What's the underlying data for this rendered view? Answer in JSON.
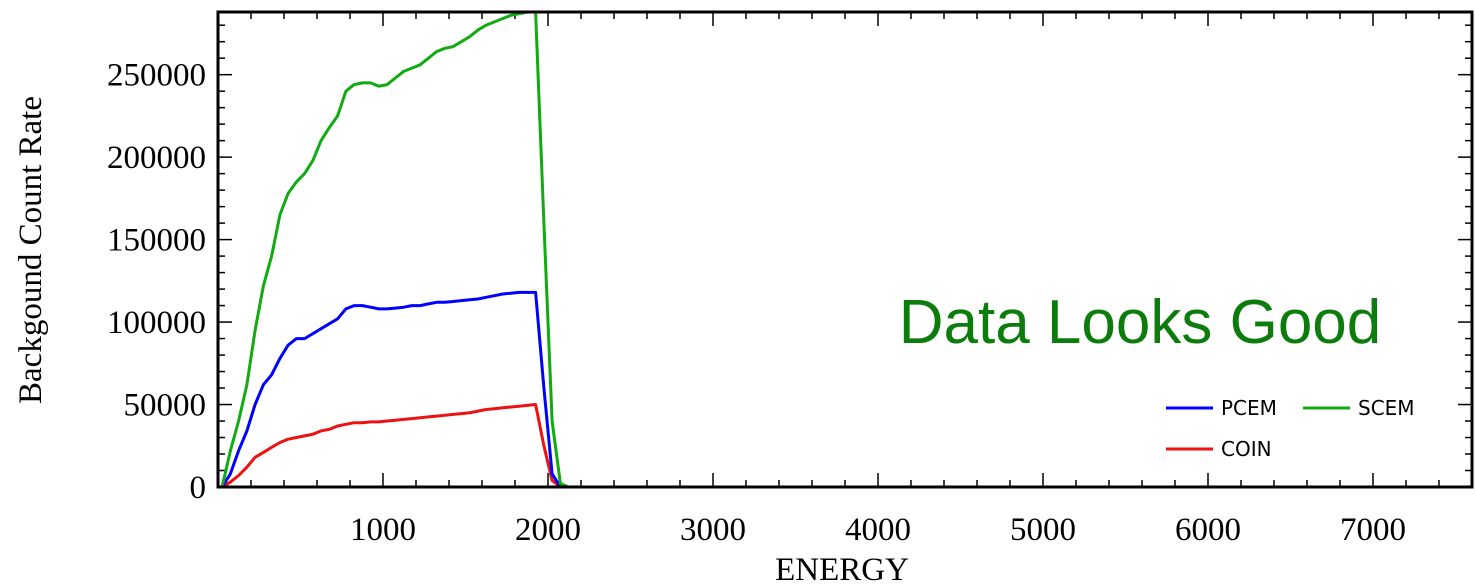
{
  "chart_data": {
    "type": "line",
    "title": "",
    "xlabel": "ENERGY",
    "ylabel": "Backgound Count Rate",
    "xlim": [
      0,
      7600
    ],
    "ylim": [
      0,
      288000
    ],
    "x_ticks": [
      1000,
      2000,
      3000,
      4000,
      5000,
      6000,
      7000
    ],
    "x_tick_labels": [
      "1000",
      "2000",
      "3000",
      "4000",
      "5000",
      "6000",
      "7000"
    ],
    "y_ticks": [
      0,
      50000,
      100000,
      150000,
      200000,
      250000
    ],
    "y_tick_labels": [
      "0",
      "50000",
      "100000",
      "150000",
      "200000",
      "250000"
    ],
    "grid": false,
    "legend_position": "bottom-right",
    "annotation": {
      "text": "Data Looks Good",
      "color": "#0c7d0c"
    },
    "series": [
      {
        "name": "PCEM",
        "color": "#0000ff",
        "x": [
          25,
          75,
          125,
          175,
          225,
          275,
          325,
          375,
          425,
          475,
          525,
          575,
          625,
          675,
          725,
          775,
          825,
          875,
          925,
          975,
          1025,
          1075,
          1125,
          1175,
          1225,
          1275,
          1325,
          1375,
          1425,
          1475,
          1525,
          1575,
          1625,
          1675,
          1725,
          1775,
          1825,
          1875,
          1925,
          1975,
          2025,
          2075,
          2125,
          2200,
          3000,
          4000,
          5000,
          6000,
          7000,
          7600
        ],
        "y": [
          0,
          8000,
          22000,
          34000,
          50000,
          62000,
          68000,
          78000,
          86000,
          90000,
          90000,
          93000,
          96000,
          99000,
          102000,
          108000,
          110000,
          110000,
          109000,
          108000,
          108000,
          108500,
          109000,
          110000,
          110000,
          111000,
          112000,
          112000,
          112500,
          113000,
          113500,
          114000,
          115000,
          116000,
          117000,
          117500,
          118000,
          118000,
          118000,
          60000,
          8000,
          0,
          0,
          0,
          0,
          0,
          0,
          0,
          0,
          0
        ]
      },
      {
        "name": "SCEM",
        "color": "#11aa11",
        "x": [
          25,
          75,
          125,
          175,
          225,
          275,
          325,
          375,
          425,
          475,
          525,
          575,
          625,
          675,
          725,
          775,
          825,
          875,
          925,
          975,
          1025,
          1075,
          1125,
          1175,
          1225,
          1275,
          1325,
          1375,
          1425,
          1475,
          1525,
          1575,
          1625,
          1675,
          1725,
          1775,
          1825,
          1875,
          1925,
          1975,
          2025,
          2075,
          2125,
          2200,
          3000,
          4000,
          5000,
          6000,
          7000,
          7600
        ],
        "y": [
          0,
          22000,
          40000,
          62000,
          95000,
          122000,
          140000,
          165000,
          178000,
          185000,
          190000,
          198000,
          210000,
          218000,
          225000,
          240000,
          244000,
          245000,
          245000,
          243000,
          244000,
          248000,
          252000,
          254000,
          256000,
          260000,
          264000,
          266000,
          267000,
          270000,
          273000,
          277000,
          280000,
          282000,
          284000,
          286000,
          287000,
          288000,
          288000,
          160000,
          40000,
          2000,
          0,
          0,
          0,
          0,
          0,
          0,
          0,
          0
        ]
      },
      {
        "name": "COIN",
        "color": "#ee1111",
        "x": [
          25,
          75,
          125,
          175,
          225,
          275,
          325,
          375,
          425,
          475,
          525,
          575,
          625,
          675,
          725,
          775,
          825,
          875,
          925,
          975,
          1025,
          1075,
          1125,
          1175,
          1225,
          1275,
          1325,
          1375,
          1425,
          1475,
          1525,
          1575,
          1625,
          1675,
          1725,
          1775,
          1825,
          1875,
          1925,
          1975,
          2025,
          2075,
          2125,
          2200,
          3000,
          4000,
          5000,
          6000,
          7000,
          7600
        ],
        "y": [
          0,
          3000,
          7000,
          12000,
          18000,
          21000,
          24000,
          27000,
          29000,
          30000,
          31000,
          32000,
          34000,
          35000,
          37000,
          38000,
          39000,
          39000,
          39500,
          39500,
          40000,
          40500,
          41000,
          41500,
          42000,
          42500,
          43000,
          43500,
          44000,
          44500,
          45000,
          46000,
          47000,
          47500,
          48000,
          48500,
          49000,
          49500,
          50000,
          25000,
          4000,
          0,
          0,
          0,
          0,
          0,
          0,
          0,
          0,
          0
        ]
      }
    ]
  }
}
